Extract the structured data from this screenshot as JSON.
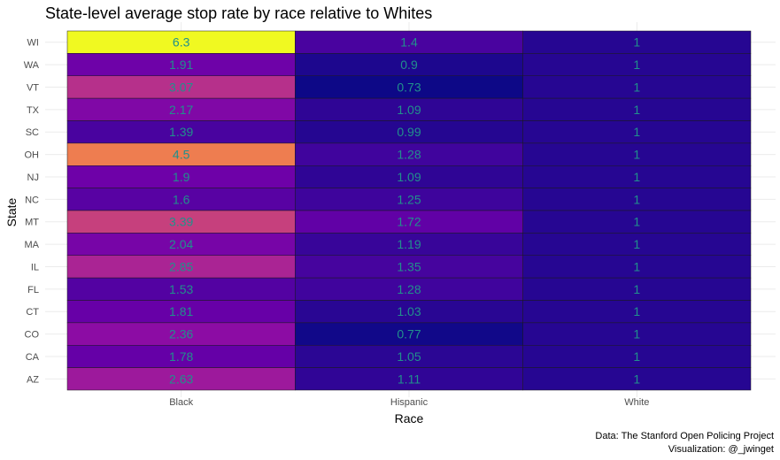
{
  "chart_data": {
    "type": "heatmap",
    "title": "State-level average stop rate by race relative to Whites",
    "xlabel": "Race",
    "ylabel": "State",
    "x_categories": [
      "Black",
      "Hispanic",
      "White"
    ],
    "y_categories": [
      "WI",
      "WA",
      "VT",
      "TX",
      "SC",
      "OH",
      "NJ",
      "NC",
      "MT",
      "MA",
      "IL",
      "FL",
      "CT",
      "CO",
      "CA",
      "AZ"
    ],
    "values": [
      [
        6.3,
        1.4,
        1
      ],
      [
        1.91,
        0.9,
        1
      ],
      [
        3.07,
        0.73,
        1
      ],
      [
        2.17,
        1.09,
        1
      ],
      [
        1.39,
        0.99,
        1
      ],
      [
        4.5,
        1.28,
        1
      ],
      [
        1.9,
        1.09,
        1
      ],
      [
        1.6,
        1.25,
        1
      ],
      [
        3.39,
        1.72,
        1
      ],
      [
        2.04,
        1.19,
        1
      ],
      [
        2.85,
        1.35,
        1
      ],
      [
        1.53,
        1.28,
        1
      ],
      [
        1.81,
        1.03,
        1
      ],
      [
        2.36,
        0.77,
        1
      ],
      [
        1.78,
        1.05,
        1
      ],
      [
        2.63,
        1.11,
        1
      ]
    ],
    "color_scale": "plasma",
    "value_range": [
      0.73,
      6.3
    ],
    "label_color": "#21908c",
    "legend": "none",
    "grid": true,
    "caption": [
      "Data: The Stanford Open Policing Project",
      "Visualization: @_jwinget"
    ]
  }
}
